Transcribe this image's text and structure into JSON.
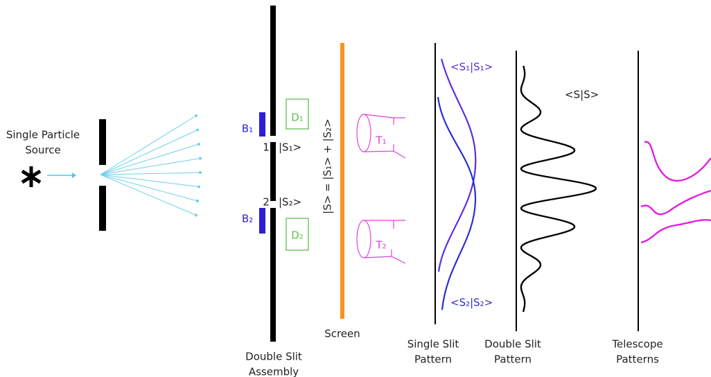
{
  "source_label": [
    "Single Particle",
    "Source"
  ],
  "detectors": {
    "b1": "B₁",
    "b2": "B₂",
    "d1": "D₁",
    "d2": "D₂"
  },
  "slits": {
    "slit1_number": "1",
    "slit1_state": "|S₁>",
    "slit2_number": "2",
    "slit2_state": "|S₂>"
  },
  "superposition": "|S> = |S₁> + |S₂>",
  "telescopes": {
    "t1": "T₁",
    "t2": "T₂"
  },
  "screen_label": "Screen",
  "pattern_labels": {
    "s1": "<S₁|S₁>",
    "s2": "<S₂|S₂>",
    "s": "<S|S>"
  },
  "captions": {
    "assembly": [
      "Double Slit",
      "Assembly"
    ],
    "single": [
      "Single Slit",
      "Pattern"
    ],
    "double": [
      "Double Slit",
      "Pattern"
    ],
    "telescope": [
      "Telescope",
      "Patterns"
    ]
  }
}
